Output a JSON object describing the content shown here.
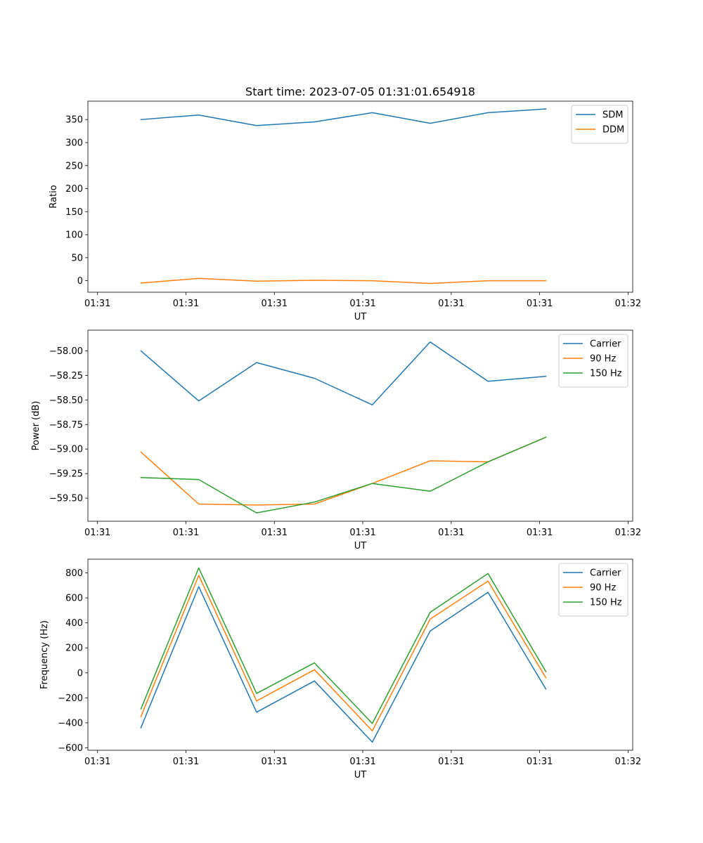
{
  "chart_data": [
    {
      "type": "line",
      "title": "Start time: 2023-07-05 01:31:01.654918",
      "xlabel": "UT",
      "ylabel": "Ratio",
      "xlim": [
        -0.1,
        5.55
      ],
      "ylim": [
        -25,
        390
      ],
      "x_ticks": [
        0,
        0.917,
        1.834,
        2.751,
        3.668,
        4.585,
        5.502
      ],
      "x_tick_labels": [
        "01:31",
        "01:31",
        "01:31",
        "01:31",
        "01:31",
        "01:31",
        "01:32"
      ],
      "y_ticks": [
        0,
        50,
        100,
        150,
        200,
        250,
        300,
        350
      ],
      "y_tick_labels": [
        "0",
        "50",
        "100",
        "150",
        "200",
        "250",
        "300",
        "350"
      ],
      "x": [
        0.45,
        1.05,
        1.65,
        2.25,
        2.85,
        3.45,
        4.05,
        4.65
      ],
      "legend_position": "top-right",
      "series": [
        {
          "name": "SDM",
          "color": "#1f77b4",
          "values": [
            350,
            360,
            337,
            345,
            365,
            342,
            365,
            373
          ]
        },
        {
          "name": "DDM",
          "color": "#ff7f0e",
          "values": [
            -5,
            5,
            -1,
            1,
            0,
            -6,
            0,
            0
          ]
        }
      ]
    },
    {
      "type": "line",
      "title": "",
      "xlabel": "UT",
      "ylabel": "Power (dB)",
      "xlim": [
        -0.1,
        5.55
      ],
      "ylim": [
        -59.735,
        -57.79
      ],
      "x_ticks": [
        0,
        0.917,
        1.834,
        2.751,
        3.668,
        4.585,
        5.502
      ],
      "x_tick_labels": [
        "01:31",
        "01:31",
        "01:31",
        "01:31",
        "01:31",
        "01:31",
        "01:32"
      ],
      "y_ticks": [
        -59.5,
        -59.25,
        -59.0,
        -58.75,
        -58.5,
        -58.25,
        -58.0
      ],
      "y_tick_labels": [
        "−59.50",
        "−59.25",
        "−59.00",
        "−58.75",
        "−58.50",
        "−58.25",
        "−58.00"
      ],
      "x": [
        0.45,
        1.05,
        1.65,
        2.25,
        2.85,
        3.45,
        4.05,
        4.65
      ],
      "legend_position": "top-right",
      "series": [
        {
          "name": "Carrier",
          "color": "#1f77b4",
          "values": [
            -58.0,
            -58.51,
            -58.12,
            -58.28,
            -58.55,
            -57.91,
            -58.31,
            -58.26
          ]
        },
        {
          "name": "90 Hz",
          "color": "#ff7f0e",
          "values": [
            -59.03,
            -59.56,
            -59.57,
            -59.56,
            -59.35,
            -59.12,
            -59.13,
            -58.88
          ]
        },
        {
          "name": "150 Hz",
          "color": "#2ca02c",
          "values": [
            -59.29,
            -59.31,
            -59.65,
            -59.54,
            -59.35,
            -59.43,
            -59.13,
            -58.88
          ]
        }
      ]
    },
    {
      "type": "line",
      "title": "",
      "xlabel": "UT",
      "ylabel": "Frequency (Hz)",
      "xlim": [
        -0.1,
        5.55
      ],
      "ylim": [
        -620,
        910
      ],
      "x_ticks": [
        0,
        0.917,
        1.834,
        2.751,
        3.668,
        4.585,
        5.502
      ],
      "x_tick_labels": [
        "01:31",
        "01:31",
        "01:31",
        "01:31",
        "01:31",
        "01:31",
        "01:32"
      ],
      "y_ticks": [
        -600,
        -400,
        -200,
        0,
        200,
        400,
        600,
        800
      ],
      "y_tick_labels": [
        "−600",
        "−400",
        "−200",
        "0",
        "200",
        "400",
        "600",
        "800"
      ],
      "x": [
        0.45,
        1.05,
        1.65,
        2.25,
        2.85,
        3.45,
        4.05,
        4.65
      ],
      "legend_position": "top-right",
      "series": [
        {
          "name": "Carrier",
          "color": "#1f77b4",
          "values": [
            -440,
            690,
            -315,
            -65,
            -555,
            335,
            645,
            -130
          ]
        },
        {
          "name": "90 Hz",
          "color": "#ff7f0e",
          "values": [
            -350,
            780,
            -225,
            25,
            -465,
            430,
            735,
            -40
          ]
        },
        {
          "name": "150 Hz",
          "color": "#2ca02c",
          "values": [
            -290,
            840,
            -165,
            80,
            -405,
            485,
            795,
            10
          ]
        }
      ]
    }
  ]
}
